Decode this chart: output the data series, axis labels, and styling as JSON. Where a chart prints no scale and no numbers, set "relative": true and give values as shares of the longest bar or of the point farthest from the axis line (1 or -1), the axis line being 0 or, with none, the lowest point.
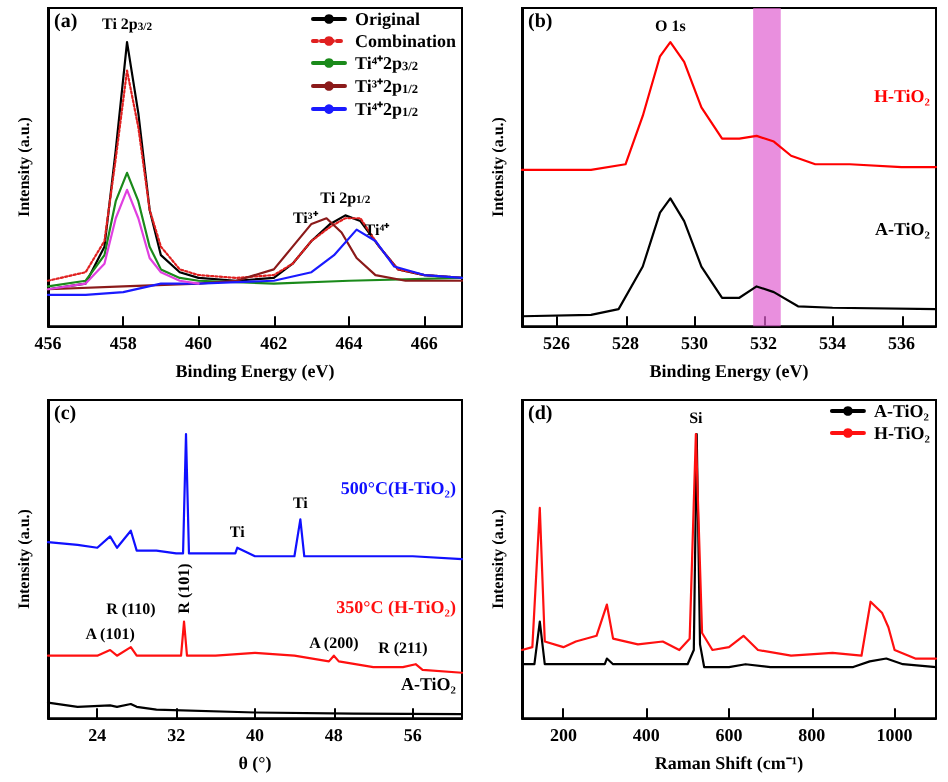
{
  "chart_data": [
    {
      "type": "line",
      "relative": true,
      "xlabel": "Binding Energy (eV)",
      "ylabel": "Intensity (a.u.)",
      "xlim": [
        456,
        467
      ],
      "xticks": [
        456,
        458,
        460,
        462,
        464,
        466
      ],
      "grid": false,
      "legend": "top right",
      "line_style": "solid",
      "annotations": [
        "(a)",
        {
          "text": "Ti 2p$_{3/2}$",
          "x": 458.1,
          "y": 1
        },
        {
          "text": "Ti 2p$_{1/2}$",
          "x": 463.9,
          "y": 0.39
        },
        {
          "text": "Ti³⁺",
          "x": 463.4,
          "y": 0.38
        },
        {
          "text": "Ti⁴⁺",
          "x": 464.2,
          "y": 0.34
        }
      ],
      "series": [
        {
          "name": "Original",
          "color": "#000000",
          "x": [
            456,
            457,
            457.5,
            457.8,
            458.1,
            458.4,
            458.7,
            459,
            459.5,
            460,
            461,
            462,
            462.5,
            463,
            463.5,
            463.9,
            464.3,
            464.8,
            465.3,
            466,
            467
          ],
          "values": [
            0.13,
            0.15,
            0.28,
            0.62,
            1,
            0.75,
            0.41,
            0.25,
            0.19,
            0.17,
            0.16,
            0.17,
            0.22,
            0.3,
            0.36,
            0.39,
            0.37,
            0.28,
            0.2,
            0.18,
            0.17
          ]
        },
        {
          "name": "Combination",
          "color": "#e02020",
          "line_style": "dotted",
          "x": [
            456,
            457,
            457.5,
            457.8,
            458.1,
            458.4,
            458.7,
            459,
            459.5,
            460,
            461,
            462,
            462.5,
            463,
            463.5,
            463.9,
            464.3,
            464.8,
            465.3,
            466,
            467
          ],
          "values": [
            0.16,
            0.19,
            0.3,
            0.59,
            0.9,
            0.7,
            0.41,
            0.28,
            0.2,
            0.18,
            0.17,
            0.18,
            0.22,
            0.3,
            0.35,
            0.38,
            0.38,
            0.28,
            0.2,
            0.18,
            0.17
          ]
        },
        {
          "name": "Ti⁴⁺2p$_{3/2}$",
          "color": "#1a8a1a",
          "x": [
            456,
            457,
            457.5,
            457.8,
            458.1,
            458.4,
            458.7,
            459,
            459.5,
            460,
            462,
            464,
            467
          ],
          "values": [
            0.14,
            0.16,
            0.25,
            0.44,
            0.54,
            0.44,
            0.28,
            0.2,
            0.17,
            0.16,
            0.15,
            0.16,
            0.17
          ]
        },
        {
          "name": "Ti³⁺2p$_{1/2}$",
          "color": "#8b1a1a",
          "x": [
            456,
            458,
            460,
            461,
            462,
            462.5,
            463,
            463.4,
            463.8,
            464.2,
            464.7,
            465.5,
            467
          ],
          "values": [
            0.13,
            0.14,
            0.15,
            0.16,
            0.2,
            0.28,
            0.36,
            0.38,
            0.33,
            0.24,
            0.18,
            0.16,
            0.16
          ]
        },
        {
          "name": "Ti⁴⁺2p$_{1/2}$",
          "color": "#1a1aff",
          "x": [
            456,
            457,
            458,
            459,
            460,
            462,
            463,
            463.6,
            464.2,
            464.7,
            465.2,
            466,
            467
          ],
          "values": [
            0.11,
            0.11,
            0.12,
            0.15,
            0.15,
            0.16,
            0.19,
            0.25,
            0.34,
            0.3,
            0.21,
            0.18,
            0.17
          ]
        },
        {
          "color": "#e040e0",
          "x": [
            456,
            457,
            457.5,
            457.8,
            458.1,
            458.4,
            458.7,
            459,
            459.5,
            460
          ],
          "values": [
            0.13,
            0.15,
            0.22,
            0.38,
            0.48,
            0.38,
            0.24,
            0.19,
            0.16,
            0.15
          ]
        }
      ]
    },
    {
      "type": "line",
      "relative": true,
      "xlabel": "Binding Energy (eV)",
      "ylabel": "Intensity (a.u.)",
      "xlim": [
        525,
        537
      ],
      "xticks": [
        526,
        528,
        530,
        532,
        534,
        536
      ],
      "grid": false,
      "line_style": "solid",
      "annotations": [
        "(b)",
        {
          "text": "O 1s",
          "x": 529.3,
          "y": 1
        }
      ],
      "bands": [
        {
          "axis": "x",
          "from": 531.7,
          "to": 532.5,
          "color": "#e060d0"
        }
      ],
      "series": [
        {
          "name": "H-TiO₂",
          "color": "#ff0000",
          "x": [
            525,
            527,
            528,
            528.5,
            529,
            529.3,
            529.7,
            530.2,
            530.8,
            531.3,
            531.8,
            532.3,
            532.8,
            533.5,
            534.5,
            536,
            537
          ],
          "values": [
            0.55,
            0.55,
            0.57,
            0.74,
            0.95,
            1,
            0.93,
            0.77,
            0.66,
            0.66,
            0.67,
            0.65,
            0.6,
            0.57,
            0.57,
            0.56,
            0.56
          ]
        },
        {
          "name": "A-TiO₂",
          "color": "#000000",
          "x": [
            525,
            527,
            527.8,
            528.5,
            529,
            529.3,
            529.7,
            530.2,
            530.8,
            531.3,
            531.8,
            532.3,
            533,
            534,
            537
          ],
          "values": [
            0.035,
            0.04,
            0.06,
            0.21,
            0.4,
            0.45,
            0.37,
            0.21,
            0.1,
            0.1,
            0.14,
            0.12,
            0.07,
            0.065,
            0.06
          ]
        }
      ]
    },
    {
      "type": "line",
      "relative": true,
      "xlabel": "θ (°)",
      "ylabel": "Intensity (a.u.)",
      "xlim": [
        19,
        61
      ],
      "xticks": [
        24,
        32,
        40,
        48,
        56
      ],
      "grid": false,
      "line_style": "solid",
      "annotations": [
        "(c)",
        {
          "text": "Ti",
          "x": 38.2,
          "y": 0.6
        },
        {
          "text": "Ti",
          "x": 44.6,
          "y": 0.7
        },
        {
          "text": "A (101)",
          "x": 25.3,
          "y": 0.24
        },
        {
          "text": "R (110)",
          "x": 27.4,
          "y": 0.25
        },
        {
          "text": "R (101)",
          "x": 32.8,
          "y": 0.34
        },
        {
          "text": "A (200)",
          "x": 48,
          "y": 0.21
        },
        {
          "text": "R (211)",
          "x": 55,
          "y": 0.19
        }
      ],
      "series": [
        {
          "name": "500°C(H-TiO₂)",
          "color": "#1010ff",
          "x": [
            19,
            22,
            24,
            25.3,
            26,
            27.4,
            28,
            30,
            32,
            32.7,
            33,
            33.3,
            35,
            38,
            38.2,
            40,
            44,
            44.6,
            45,
            48,
            52,
            56,
            61
          ],
          "values": [
            0.62,
            0.61,
            0.6,
            0.64,
            0.6,
            0.66,
            0.59,
            0.59,
            0.58,
            0.58,
            1,
            0.58,
            0.58,
            0.58,
            0.6,
            0.57,
            0.57,
            0.7,
            0.57,
            0.57,
            0.57,
            0.57,
            0.56
          ]
        },
        {
          "name": "350°C (H-TiO₂)",
          "color": "#ff1010",
          "x": [
            19,
            24,
            25.3,
            26,
            27.4,
            28,
            30,
            32.5,
            32.8,
            33.1,
            36,
            40,
            44,
            47.5,
            48,
            48.5,
            52,
            55,
            56.3,
            57,
            61
          ],
          "values": [
            0.22,
            0.22,
            0.24,
            0.22,
            0.25,
            0.22,
            0.22,
            0.22,
            0.34,
            0.22,
            0.22,
            0.23,
            0.22,
            0.2,
            0.22,
            0.2,
            0.18,
            0.18,
            0.19,
            0.17,
            0.16
          ]
        },
        {
          "name": "A-TiO₂",
          "color": "#000000",
          "x": [
            19,
            22,
            25.3,
            26,
            27.4,
            28,
            30,
            40,
            50,
            61
          ],
          "values": [
            0.055,
            0.04,
            0.045,
            0.04,
            0.05,
            0.04,
            0.03,
            0.02,
            0.016,
            0.014
          ]
        }
      ]
    },
    {
      "type": "line",
      "relative": true,
      "xlabel": "Raman Shift (cm⁻¹)",
      "ylabel": "Intensity (a.u.)",
      "xlim": [
        100,
        1100
      ],
      "xticks": [
        200,
        400,
        600,
        800,
        1000
      ],
      "grid": false,
      "legend": "top right",
      "line_style": "solid",
      "annotations": [
        "(d)",
        {
          "text": "Si",
          "x": 520,
          "y": 1
        }
      ],
      "series": [
        {
          "name": "A-TiO₂",
          "color": "#000000",
          "x": [
            100,
            130,
            143,
            155,
            200,
            300,
            305,
            320,
            400,
            500,
            515,
            522,
            530,
            540,
            600,
            640,
            700,
            900,
            940,
            980,
            1020,
            1100
          ],
          "values": [
            0.19,
            0.19,
            0.34,
            0.19,
            0.19,
            0.19,
            0.21,
            0.19,
            0.19,
            0.19,
            0.24,
            1,
            0.26,
            0.18,
            0.18,
            0.19,
            0.18,
            0.18,
            0.2,
            0.21,
            0.19,
            0.18
          ]
        },
        {
          "name": "H-TiO₂",
          "color": "#ff1010",
          "x": [
            100,
            125,
            143,
            155,
            200,
            230,
            280,
            305,
            320,
            380,
            440,
            480,
            505,
            520,
            535,
            560,
            600,
            635,
            670,
            750,
            850,
            920,
            942,
            970,
            985,
            1000,
            1050,
            1100
          ],
          "values": [
            0.24,
            0.25,
            0.74,
            0.27,
            0.25,
            0.27,
            0.29,
            0.4,
            0.28,
            0.26,
            0.27,
            0.24,
            0.28,
            1,
            0.3,
            0.24,
            0.25,
            0.29,
            0.24,
            0.22,
            0.23,
            0.22,
            0.41,
            0.37,
            0.32,
            0.24,
            0.21,
            0.21
          ]
        }
      ]
    }
  ]
}
